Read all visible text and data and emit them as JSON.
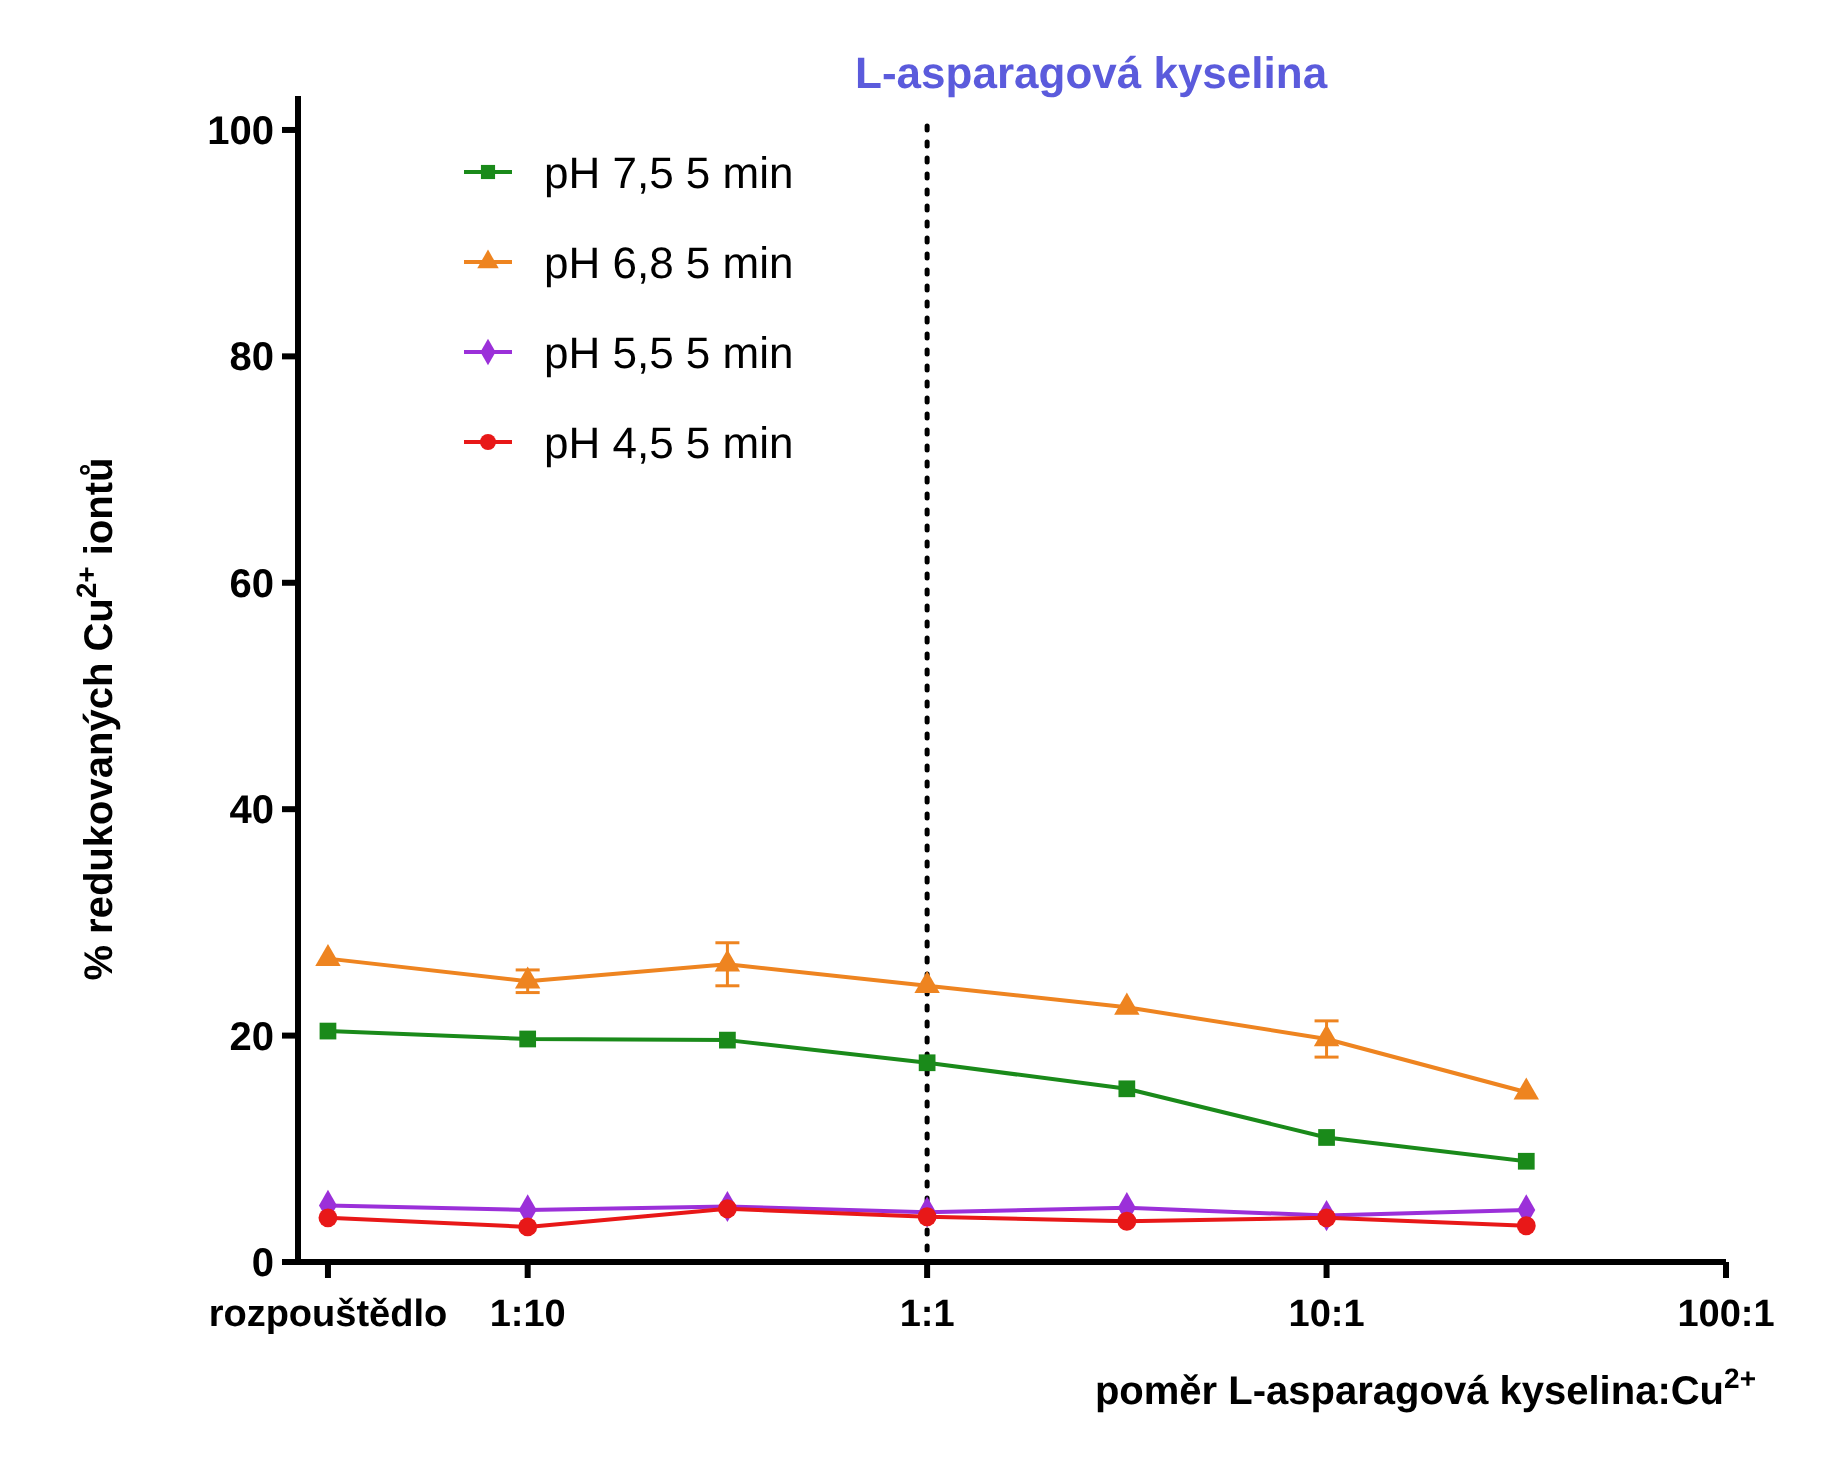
{
  "chart_data": {
    "type": "line",
    "title": "L-asparagová kyselina",
    "xlabel": "poměr L-asparagová kyselina:Cu$^{2+}$",
    "ylabel": "% redukovaných Cu$^{2+}$ iontů",
    "categories": [
      "rozpouštědlo",
      "1:10",
      null,
      "1:1",
      null,
      "10:1",
      null,
      "100:1"
    ],
    "ylim": [
      0,
      103
    ],
    "yticks": [
      0,
      20,
      40,
      60,
      80,
      100
    ],
    "series": [
      {
        "name": "pH 7,5 5 min",
        "color": "#1a8a1a",
        "marker": "square",
        "values": [
          20.4,
          19.7,
          19.6,
          17.6,
          15.3,
          11.0,
          8.9,
          null
        ]
      },
      {
        "name": "pH 6,8 5 min",
        "color": "#ee8420",
        "marker": "triangle",
        "values": [
          26.8,
          24.8,
          26.3,
          24.4,
          22.5,
          19.7,
          15.0,
          null
        ],
        "errors": [
          null,
          1.0,
          1.9,
          null,
          null,
          1.6,
          null,
          null
        ]
      },
      {
        "name": "pH 5,5 5 min",
        "color": "#9b30d9",
        "marker": "diamond",
        "values": [
          5.0,
          4.6,
          4.9,
          4.4,
          4.8,
          4.1,
          4.6,
          null
        ]
      },
      {
        "name": "pH 4,5 5 min",
        "color": "#e81818",
        "marker": "circle",
        "values": [
          3.9,
          3.1,
          4.7,
          4.0,
          3.6,
          3.9,
          3.2,
          null
        ]
      }
    ],
    "ref_lines": [
      {
        "axis": "x",
        "value": "1:1",
        "line_style": "dotted",
        "color": "#000000"
      }
    ],
    "legend": "top left",
    "grid": false
  }
}
